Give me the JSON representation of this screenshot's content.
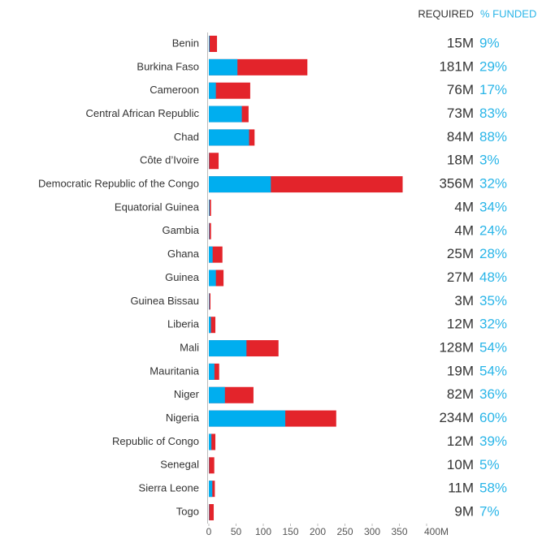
{
  "chart_data": {
    "type": "bar",
    "orientation": "horizontal",
    "categories": [
      "Benin",
      "Burkina Faso",
      "Cameroon",
      "Central African Republic",
      "Chad",
      "Côte d’Ivoire",
      "Democratic Republic of the Congo",
      "Equatorial Guinea",
      "Gambia",
      "Ghana",
      "Guinea",
      "Guinea Bissau",
      "Liberia",
      "Mali",
      "Mauritania",
      "Niger",
      "Nigeria",
      "Republic of Congo",
      "Senegal",
      "Sierra Leone",
      "Togo"
    ],
    "series": [
      {
        "name": "REQUIRED",
        "color": "#e3242b",
        "values": [
          15,
          181,
          76,
          73,
          84,
          18,
          356,
          4,
          4,
          25,
          27,
          3,
          12,
          128,
          19,
          82,
          234,
          12,
          10,
          11,
          9
        ],
        "value_labels": [
          "15M",
          "181M",
          "76M",
          "73M",
          "84M",
          "18M",
          "356M",
          "4M",
          "4M",
          "25M",
          "27M",
          "3M",
          "12M",
          "128M",
          "19M",
          "82M",
          "234M",
          "12M",
          "10M",
          "11M",
          "9M"
        ]
      },
      {
        "name": "% FUNDED",
        "color": "#00aeef",
        "values": [
          9,
          29,
          17,
          83,
          88,
          3,
          32,
          34,
          24,
          28,
          48,
          35,
          32,
          54,
          54,
          36,
          60,
          39,
          5,
          58,
          7
        ],
        "value_labels": [
          "9%",
          "29%",
          "17%",
          "83%",
          "88%",
          "3%",
          "32%",
          "34%",
          "24%",
          "28%",
          "48%",
          "35%",
          "32%",
          "54%",
          "54%",
          "36%",
          "60%",
          "39%",
          "5%",
          "58%",
          "7%"
        ]
      }
    ],
    "xlim": [
      0,
      400
    ],
    "xticks": [
      0,
      50,
      100,
      150,
      200,
      250,
      300,
      350,
      {
        "value": 400,
        "label": "400M"
      }
    ]
  }
}
